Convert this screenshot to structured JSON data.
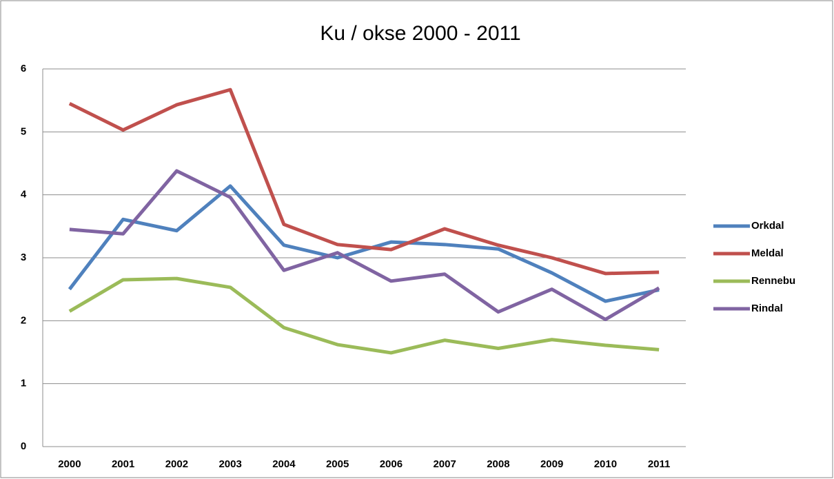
{
  "chart_data": {
    "type": "line",
    "title": "Ku / okse 2000 - 2011",
    "categories": [
      "2000",
      "2001",
      "2002",
      "2003",
      "2004",
      "2005",
      "2006",
      "2007",
      "2008",
      "2009",
      "2010",
      "2011"
    ],
    "series": [
      {
        "name": "Orkdal",
        "color": "#4f81bd",
        "values": [
          2.5,
          3.61,
          3.43,
          4.14,
          3.2,
          3.0,
          3.25,
          3.21,
          3.14,
          2.76,
          2.31,
          2.49
        ]
      },
      {
        "name": "Meldal",
        "color": "#c0504d",
        "values": [
          5.45,
          5.03,
          5.43,
          5.67,
          3.53,
          3.21,
          3.13,
          3.46,
          3.2,
          3.0,
          2.75,
          2.77
        ]
      },
      {
        "name": "Rennebu",
        "color": "#9bbb59",
        "values": [
          2.15,
          2.65,
          2.67,
          2.53,
          1.89,
          1.62,
          1.49,
          1.69,
          1.56,
          1.7,
          1.61,
          1.54
        ]
      },
      {
        "name": "Rindal",
        "color": "#8064a2",
        "values": [
          3.45,
          3.38,
          4.38,
          3.96,
          2.8,
          3.08,
          2.63,
          2.74,
          2.14,
          2.5,
          2.02,
          2.52
        ]
      }
    ],
    "ylim": [
      0,
      6
    ],
    "yticks": [
      0,
      1,
      2,
      3,
      4,
      5,
      6
    ],
    "grid": true,
    "legend": "right"
  }
}
